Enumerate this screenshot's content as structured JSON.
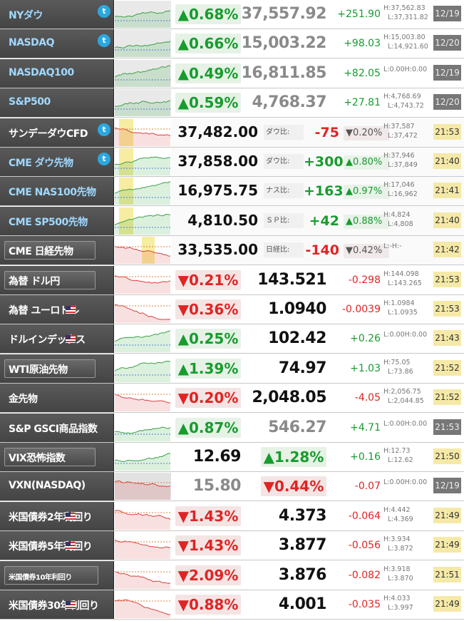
{
  "rows": [
    {
      "name": "NYダウ",
      "tw": true,
      "style": "blue",
      "layout": "A",
      "pct": "▲0.68%",
      "dir": "up",
      "price": "37,557.92",
      "pcolor": "grey",
      "chg": "+251.90",
      "h": "H:37,562.83",
      "l": "L:37,311.82",
      "time": "12/19",
      "tstyle": "old"
    },
    {
      "name": "NASDAQ",
      "tw": true,
      "style": "blue",
      "layout": "A",
      "pct": "▲0.66%",
      "dir": "up",
      "price": "15,003.22",
      "pcolor": "grey",
      "chg": "+98.03",
      "h": "H:15,003.80",
      "l": "L:14,921.60",
      "time": "12/20",
      "tstyle": "old"
    },
    {
      "name": "NASDAQ100",
      "tw": false,
      "style": "blue",
      "layout": "A",
      "pct": "▲0.49%",
      "dir": "up",
      "price": "16,811.85",
      "pcolor": "grey",
      "chg": "+82.05",
      "h": "L:0.00H:0.00",
      "l": "",
      "time": "12/19",
      "tstyle": "old"
    },
    {
      "name": "S&P500",
      "tw": false,
      "style": "blue",
      "layout": "A",
      "pct": "▲0.59%",
      "dir": "up",
      "price": "4,768.37",
      "pcolor": "grey",
      "chg": "+27.81",
      "h": "H:4,768.69",
      "l": "L:4,743.72",
      "time": "12/20",
      "tstyle": "old"
    },
    {
      "name": "サンデーダウCFD",
      "tw": true,
      "style": "white",
      "layout": "B",
      "price": "37,482.00",
      "label": "ダウ比:",
      "diff": "-75",
      "ddir": "dn",
      "spct": "▼0.20%",
      "sdir": "dn",
      "h": "H:37,587",
      "l": "L:37,472",
      "time": "21:53",
      "tstyle": "cur"
    },
    {
      "name": "CME ダウ先物",
      "tw": true,
      "style": "blue",
      "layout": "B",
      "price": "37,858.00",
      "label": "ダウ比:",
      "diff": "+300",
      "ddir": "up",
      "spct": "▲0.80%",
      "sdir": "up",
      "h": "H:37,946",
      "l": "L:37,849",
      "time": "21:40",
      "tstyle": "cur"
    },
    {
      "name": "CME NAS100先物",
      "tw": false,
      "style": "blue",
      "layout": "B",
      "price": "16,975.75",
      "label": "ナス比:",
      "diff": "+163",
      "ddir": "up",
      "spct": "▲0.97%",
      "sdir": "up",
      "h": "H:17,046",
      "l": "L:16,962",
      "time": "21:41",
      "tstyle": "cur"
    },
    {
      "name": "CME SP500先物",
      "tw": false,
      "style": "blue",
      "layout": "B",
      "price": "4,810.50",
      "label": "ＳＰ比:",
      "diff": "+42",
      "ddir": "up",
      "spct": "▲0.88%",
      "sdir": "up",
      "h": "H:4,824",
      "l": "L:4,808",
      "time": "21:40",
      "tstyle": "cur"
    },
    {
      "name": "CME 日経先物",
      "tw": false,
      "style": "white",
      "layout": "B",
      "btn": true,
      "price": "33,535.00",
      "label": "日経比:",
      "diff": "-140",
      "ddir": "dn",
      "spct": "▼0.42%",
      "sdir": "dn",
      "h": "L:-H:-",
      "l": "",
      "time": "21:42",
      "tstyle": "cur"
    },
    {
      "name": "為替 ドル円",
      "tw": false,
      "style": "white",
      "layout": "A",
      "btn": true,
      "pct": "▼0.21%",
      "dir": "dn",
      "price": "143.521",
      "pcolor": "black",
      "chg": "-0.298",
      "h": "H:144.098",
      "l": "L:143.265",
      "time": "21:53",
      "tstyle": "cur"
    },
    {
      "name": "為替 ユーロドル",
      "tw": false,
      "style": "white",
      "layout": "A",
      "flag": true,
      "pct": "▼0.36%",
      "dir": "dn",
      "price": "1.0940",
      "pcolor": "black",
      "chg": "-0.0039",
      "h": "H:1.0984",
      "l": "L:1.0935",
      "time": "21:53",
      "tstyle": "cur"
    },
    {
      "name": "ドルインデックス",
      "tw": false,
      "style": "white",
      "layout": "A",
      "flag": true,
      "pct": "▲0.25%",
      "dir": "up",
      "price": "102.42",
      "pcolor": "black",
      "chg": "+0.26",
      "h": "L:0.00H:0.00",
      "l": "",
      "time": "21:43",
      "tstyle": "cur"
    },
    {
      "name": "WTI原油先物",
      "tw": false,
      "style": "white",
      "layout": "A",
      "btn": true,
      "pct": "▲1.39%",
      "dir": "up",
      "price": "74.97",
      "pcolor": "black",
      "chg": "+1.03",
      "h": "H:75.05",
      "l": "L:73.86",
      "time": "21:52",
      "tstyle": "cur"
    },
    {
      "name": "金先物",
      "tw": false,
      "style": "white",
      "layout": "A",
      "pct": "▼0.20%",
      "dir": "dn",
      "price": "2,048.05",
      "pcolor": "black",
      "chg": "-4.05",
      "h": "H:2,056.75",
      "l": "L:2,044.85",
      "time": "21:52",
      "tstyle": "cur"
    },
    {
      "name": "S&P GSCI商品指数",
      "tw": false,
      "style": "white",
      "layout": "A",
      "pct": "▲0.87%",
      "dir": "up",
      "price": "546.27",
      "pcolor": "grey",
      "chg": "+4.71",
      "h": "L:0.00H:0.00",
      "l": "",
      "time": "21:53",
      "tstyle": "old"
    },
    {
      "name": "VIX恐怖指数",
      "tw": true,
      "style": "white",
      "layout": "C",
      "btn": true,
      "price": "12.69",
      "pcolor": "black",
      "pct": "▲1.28%",
      "dir": "up",
      "chg": "+0.16",
      "h": "H:12.73",
      "l": "L:12.62",
      "time": "21:50",
      "tstyle": "cur"
    },
    {
      "name": "VXN(NASDAQ)",
      "tw": false,
      "style": "white",
      "layout": "C",
      "price": "15.80",
      "pcolor": "grey",
      "pct": "▼0.44%",
      "dir": "dn",
      "chg": "-0.07",
      "h": "L:0.00H:0.00",
      "l": "",
      "time": "12/19",
      "tstyle": "old"
    },
    {
      "name": "米国債券2年利回り",
      "tw": false,
      "style": "white",
      "layout": "A",
      "flag": true,
      "pct": "▼1.43%",
      "dir": "dn",
      "price": "4.373",
      "pcolor": "black",
      "chg": "-0.064",
      "h": "H:4.442",
      "l": "L:4.369",
      "time": "21:49",
      "tstyle": "cur"
    },
    {
      "name": "米国債券5年利回り",
      "tw": false,
      "style": "white",
      "layout": "A",
      "flag": true,
      "pct": "▼1.43%",
      "dir": "dn",
      "price": "3.877",
      "pcolor": "black",
      "chg": "-0.056",
      "h": "H:3.934",
      "l": "L:3.872",
      "time": "21:49",
      "tstyle": "cur"
    },
    {
      "name": "米国債券10年利回り",
      "tw": true,
      "style": "white",
      "layout": "A",
      "btn": true,
      "small": true,
      "pct": "▼2.09%",
      "dir": "dn",
      "price": "3.876",
      "pcolor": "black",
      "chg": "-0.082",
      "h": "H:3.918",
      "l": "L:3.870",
      "time": "21:51",
      "tstyle": "cur"
    },
    {
      "name": "米国債券30年利回り",
      "tw": false,
      "style": "white",
      "layout": "A",
      "flag": true,
      "pct": "▼0.88%",
      "dir": "dn",
      "price": "4.001",
      "pcolor": "black",
      "chg": "-0.035",
      "h": "H:4.033",
      "l": "L:3.997",
      "time": "21:49",
      "tstyle": "cur"
    }
  ],
  "colors": {
    "up": "#179c2e",
    "down": "#e02424",
    "twitter": "#2ba7e0",
    "time_bg": "#f5e9a8"
  }
}
